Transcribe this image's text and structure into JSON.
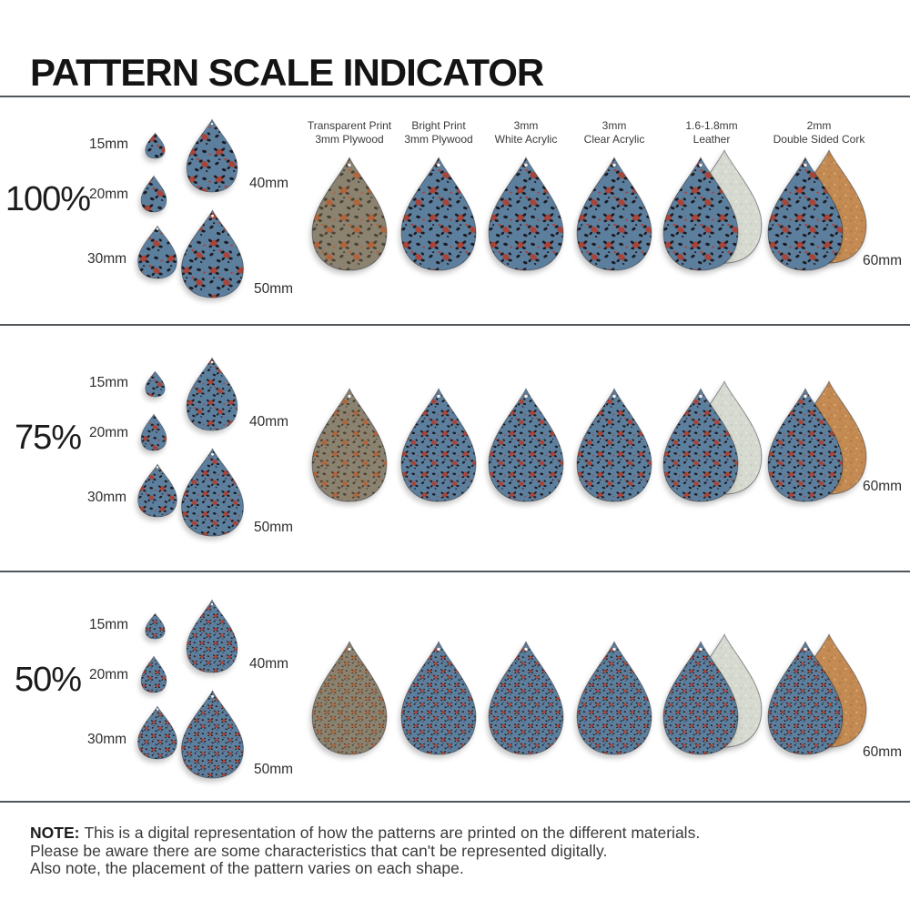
{
  "title": "PATTERN SCALE INDICATOR",
  "rows": [
    {
      "scale_label": "100%",
      "scale_value": "100"
    },
    {
      "scale_label": "75%",
      "scale_value": "75"
    },
    {
      "scale_label": "50%",
      "scale_value": "50"
    }
  ],
  "size_labels": {
    "s15": "15mm",
    "s20": "20mm",
    "s30": "30mm",
    "s40": "40mm",
    "s50": "50mm",
    "s60": "60mm"
  },
  "material_labels": [
    {
      "line1": "Transparent Print",
      "line2": "3mm Plywood"
    },
    {
      "line1": "Bright Print",
      "line2": "3mm Plywood"
    },
    {
      "line1": "3mm",
      "line2": "White Acrylic"
    },
    {
      "line1": "3mm",
      "line2": "Clear Acrylic"
    },
    {
      "line1": "1.6-1.8mm",
      "line2": "Leather"
    },
    {
      "line1": "2mm",
      "line2": "Double Sided Cork"
    }
  ],
  "note": {
    "label": "NOTE:",
    "line1": "This is a digital representation of how the patterns are printed on the different materials.",
    "line2": "Please be aware there are some characteristics that can't be represented digitally.",
    "line3": "Also note, the placement of the pattern varies on each shape."
  },
  "colors": {
    "pattern_base_blue": "#5d7f9e",
    "pattern_spot_dark": "#1b1c22",
    "pattern_spot_red": "#a7453b",
    "plywood_base": "#8b8270",
    "plywood_spot_dark": "#4a4334",
    "plywood_spot_red": "#b2653c",
    "leather_back": "#d6d9d0",
    "cork_back": "#c28a52"
  }
}
